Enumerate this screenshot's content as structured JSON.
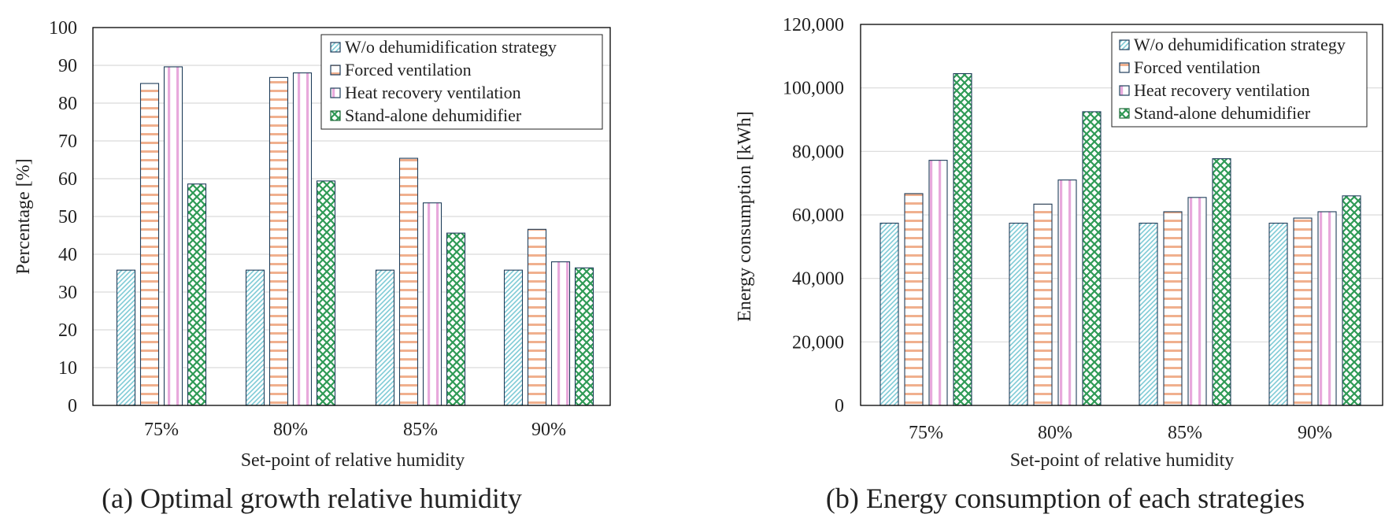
{
  "chart_data": [
    {
      "type": "bar",
      "caption": "(a) Optimal growth relative humidity",
      "xlabel": "Set-point of relative humidity",
      "ylabel": "Percentage [%]",
      "ylim": [
        0,
        100
      ],
      "yticks": [
        0,
        10,
        20,
        30,
        40,
        50,
        60,
        70,
        80,
        90,
        100
      ],
      "ytick_labels": [
        "0",
        "10",
        "20",
        "30",
        "40",
        "50",
        "60",
        "70",
        "80",
        "90",
        "100"
      ],
      "grid": true,
      "legend_position": "top-right",
      "categories": [
        "75%",
        "80%",
        "85%",
        "90%"
      ],
      "series": [
        {
          "name": "W/o dehumidification strategy",
          "values": [
            35.8,
            35.8,
            35.8,
            35.8
          ]
        },
        {
          "name": "Forced ventilation",
          "values": [
            85.2,
            86.8,
            65.4,
            46.6
          ]
        },
        {
          "name": "Heat recovery ventilation",
          "values": [
            89.6,
            88.0,
            53.6,
            38.0
          ]
        },
        {
          "name": "Stand-alone dehumidifier",
          "values": [
            58.6,
            59.4,
            45.6,
            36.4
          ]
        }
      ]
    },
    {
      "type": "bar",
      "caption": "(b) Energy consumption of each strategies",
      "xlabel": "Set-point of relative humidity",
      "ylabel": "Energy consumption [kWh]",
      "ylim": [
        0,
        120000
      ],
      "yticks": [
        0,
        20000,
        40000,
        60000,
        80000,
        100000,
        120000
      ],
      "ytick_labels": [
        "0",
        "20,000",
        "40,000",
        "60,000",
        "80,000",
        "100,000",
        "120,000"
      ],
      "grid": true,
      "legend_position": "top-right",
      "categories": [
        "75%",
        "80%",
        "85%",
        "90%"
      ],
      "series": [
        {
          "name": "W/o dehumidification strategy",
          "values": [
            57400,
            57400,
            57400,
            57400
          ]
        },
        {
          "name": "Forced ventilation",
          "values": [
            66700,
            63400,
            61000,
            59000
          ]
        },
        {
          "name": "Heat recovery ventilation",
          "values": [
            77200,
            71000,
            65500,
            61000
          ]
        },
        {
          "name": "Stand-alone dehumidifier",
          "values": [
            104500,
            92500,
            77700,
            66000
          ]
        }
      ]
    }
  ],
  "styles": {
    "series_colors": [
      "#7fcbd6",
      "#f0b08e",
      "#e8a9dc",
      "#2e9a55"
    ],
    "legend_edge_colors": [
      "#1f3d5a",
      "#1f3d5a",
      "#1f3d5a",
      "#1f6b3a"
    ],
    "bar_edge_color": "#1f3d5a",
    "axis_color": "#000000",
    "grid_color": "#d9d9d9"
  }
}
